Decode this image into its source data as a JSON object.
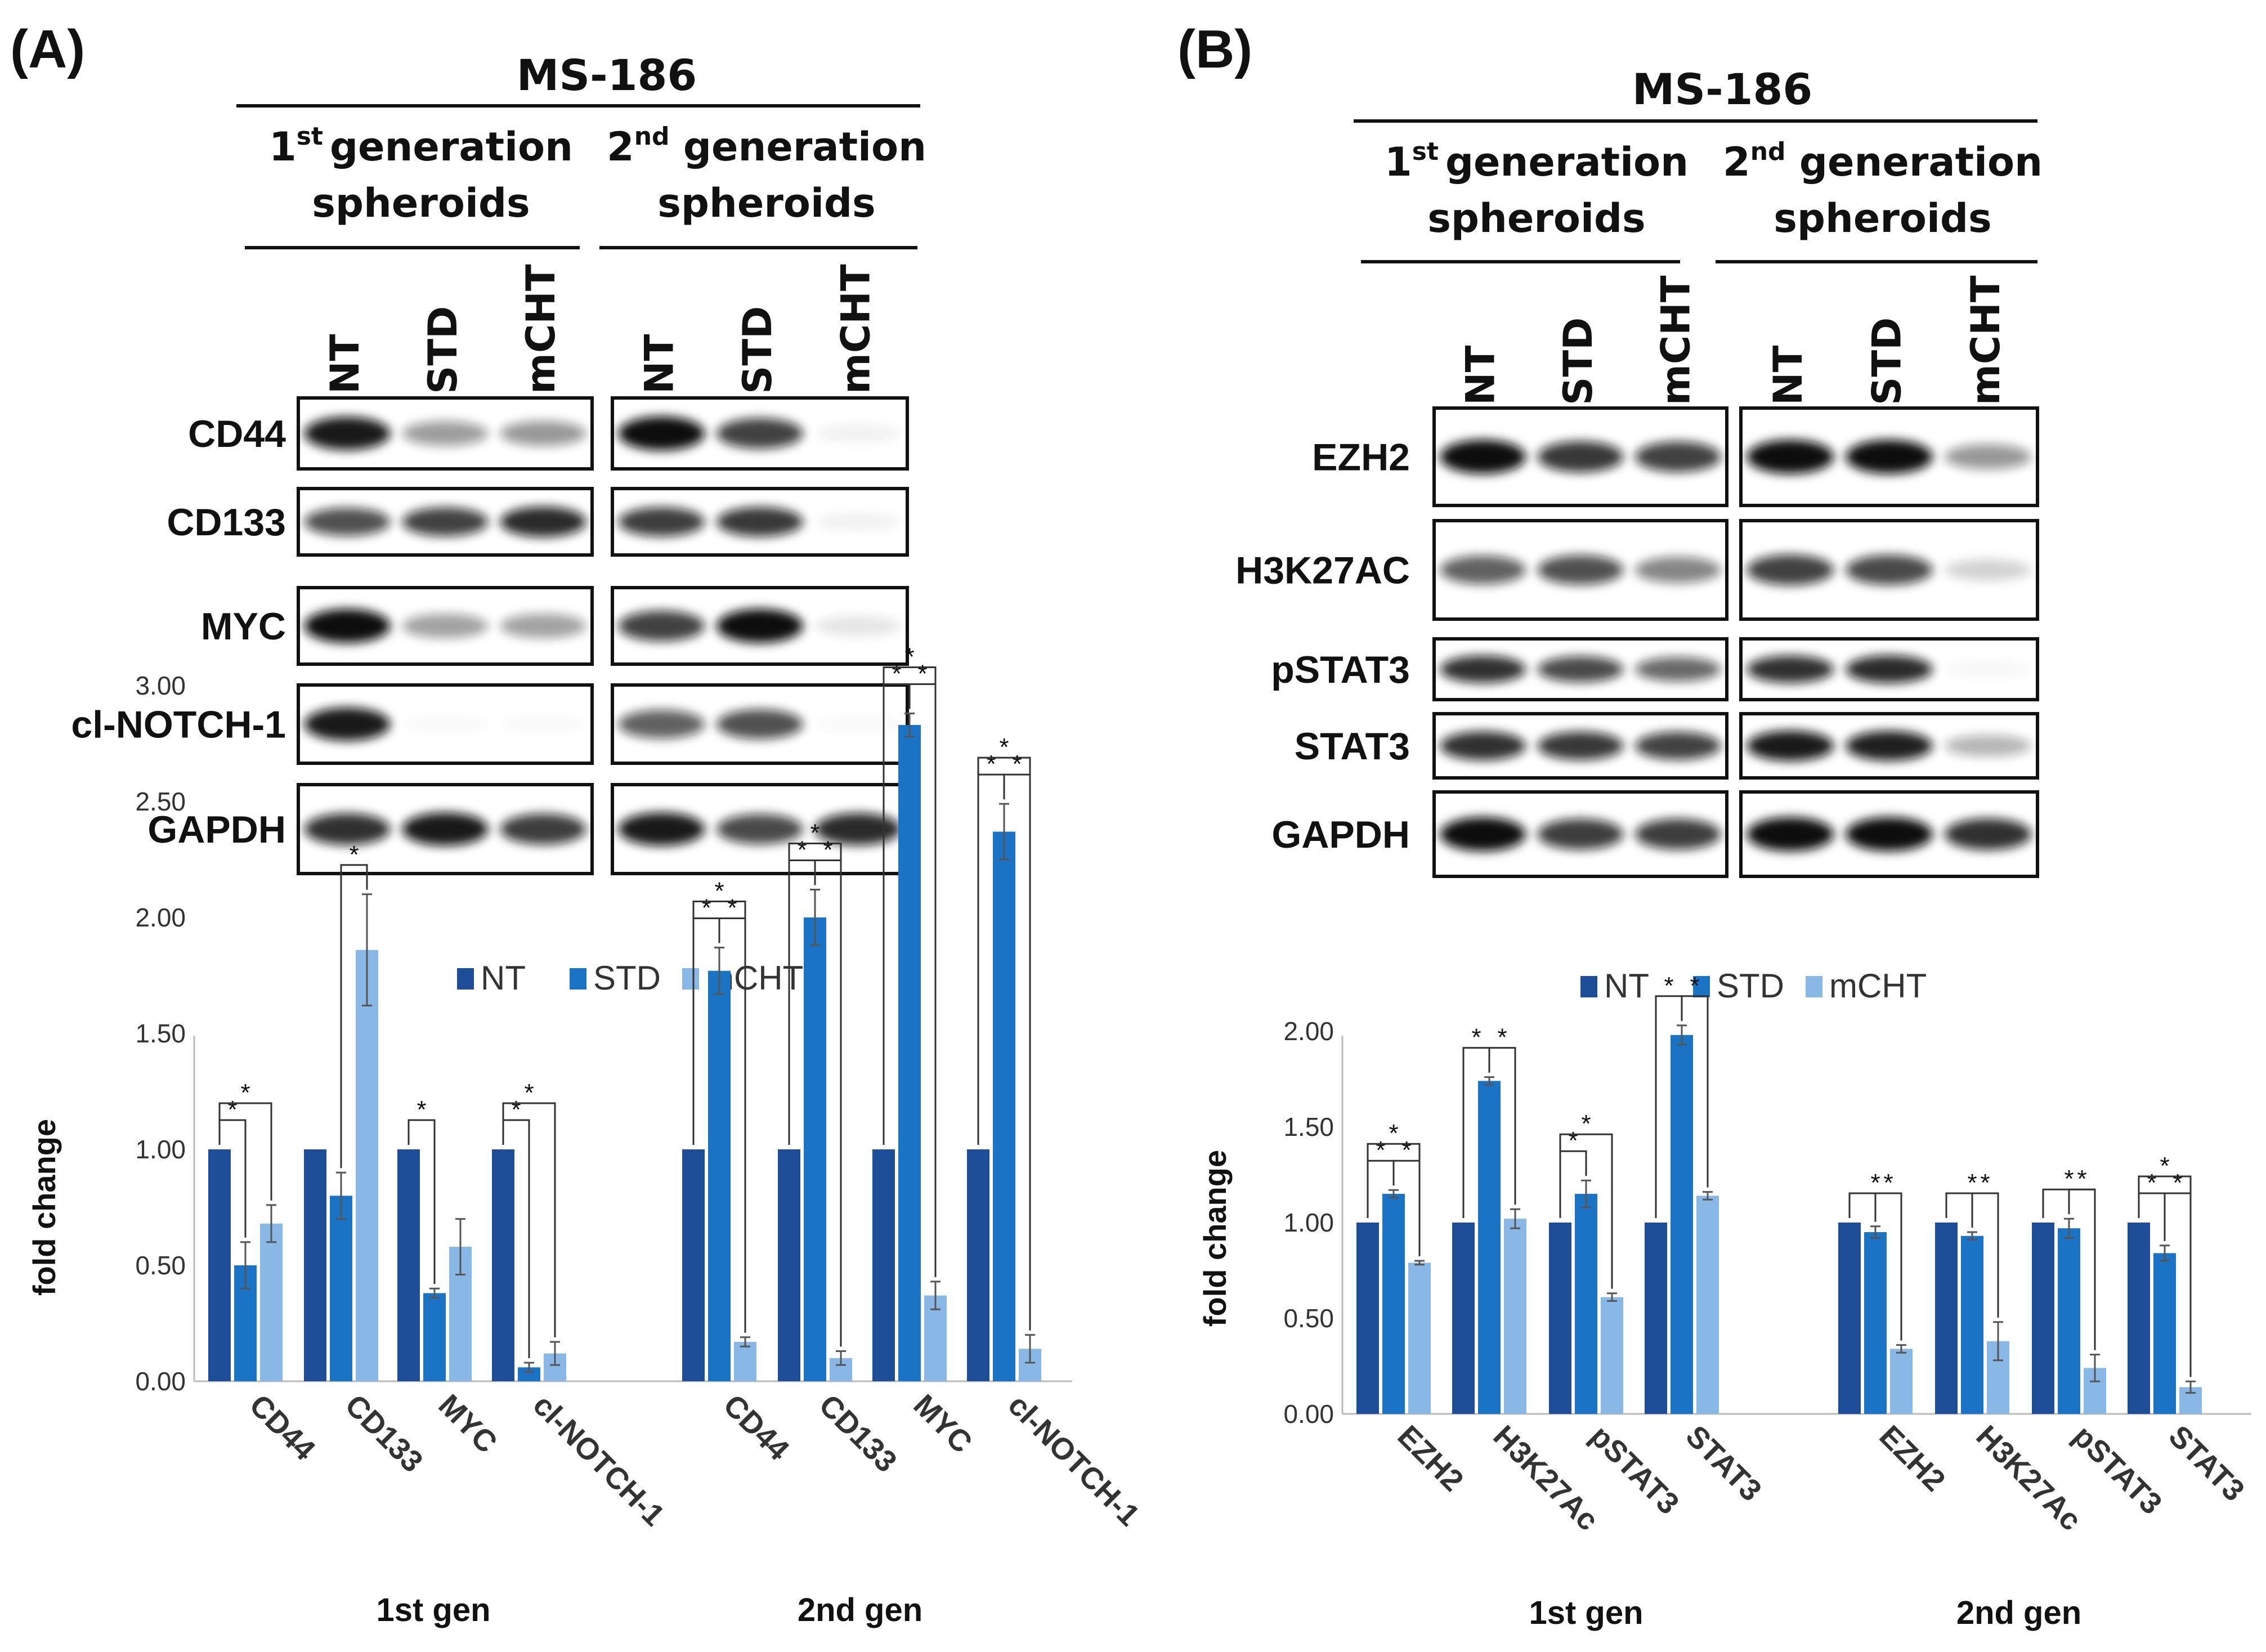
{
  "panels": [
    {
      "label": "(A)",
      "blot": {
        "cell_line": "MS-186",
        "groups": [
          {
            "line1": "1",
            "sup": "st",
            "line1_rest": "generation",
            "line2": "spheroids"
          },
          {
            "line1": "2",
            "sup": "nd",
            "line1_rest": " generation",
            "line2": "spheroids"
          }
        ],
        "lanes": [
          "NT",
          "STD",
          "mCHT"
        ],
        "rows": [
          "CD44",
          "CD133",
          "MYC",
          "cl-NOTCH-1",
          "GAPDH"
        ]
      }
    },
    {
      "label": "(B)",
      "blot": {
        "cell_line": "MS-186",
        "groups": [
          {
            "line1": "1",
            "sup": "st",
            "line1_rest": "generation",
            "line2": "spheroids"
          },
          {
            "line1": "2",
            "sup": "nd",
            "line1_rest": " generation",
            "line2": "spheroids"
          }
        ],
        "lanes": [
          "NT",
          "STD",
          "mCHT"
        ],
        "rows": [
          "EZH2",
          "H3K27AC",
          "pSTAT3",
          "STAT3",
          "GAPDH"
        ]
      }
    }
  ],
  "colors": {
    "NT": "#1f4e99",
    "STD": "#1a73c4",
    "mCHT": "#8ab8e6"
  },
  "chart_data": [
    {
      "type": "bar",
      "ylabel": "fold change",
      "ylim": [
        0,
        3.0
      ],
      "yticks": [
        "0.00",
        "0.50",
        "1.00",
        "1.50",
        "2.00",
        "2.50",
        "3.00"
      ],
      "legend": [
        "NT",
        "STD",
        "mCHT"
      ],
      "legend_position": "top",
      "groups": [
        "1st gen",
        "2nd gen"
      ],
      "categories": [
        "CD44",
        "CD133",
        "MYC",
        "cl-NOTCH-1",
        "CD44",
        "CD133",
        "MYC",
        "cl-NOTCH-1"
      ],
      "series": [
        {
          "name": "NT",
          "values": [
            1.0,
            1.0,
            1.0,
            1.0,
            1.0,
            1.0,
            1.0,
            1.0
          ],
          "errors": [
            0,
            0,
            0,
            0,
            0,
            0,
            0,
            0
          ]
        },
        {
          "name": "STD",
          "values": [
            0.5,
            0.8,
            0.38,
            0.06,
            1.77,
            2.0,
            2.83,
            2.37
          ],
          "errors": [
            0.1,
            0.1,
            0.02,
            0.02,
            0.1,
            0.12,
            0.05,
            0.12
          ]
        },
        {
          "name": "mCHT",
          "values": [
            0.68,
            1.86,
            0.58,
            0.12,
            0.17,
            0.1,
            0.37,
            0.14
          ],
          "errors": [
            0.08,
            0.24,
            0.12,
            0.05,
            0.02,
            0.03,
            0.06,
            0.06
          ]
        }
      ]
    },
    {
      "type": "bar",
      "ylabel": "fold change",
      "ylim": [
        0,
        2.2
      ],
      "yticks": [
        "0.00",
        "0.50",
        "1.00",
        "1.50",
        "2.00"
      ],
      "legend": [
        "NT",
        "STD",
        "mCHT"
      ],
      "legend_position": "top",
      "groups": [
        "1st gen",
        "2nd gen"
      ],
      "categories": [
        "EZH2",
        "H3K27Ac",
        "pSTAT3",
        "STAT3",
        "EZH2",
        "H3K27Ac",
        "pSTAT3",
        "STAT3"
      ],
      "series": [
        {
          "name": "NT",
          "values": [
            1.0,
            1.0,
            1.0,
            1.0,
            1.0,
            1.0,
            1.0,
            1.0
          ],
          "errors": [
            0,
            0,
            0,
            0,
            0,
            0,
            0,
            0
          ]
        },
        {
          "name": "STD",
          "values": [
            1.15,
            1.74,
            1.15,
            1.98,
            0.95,
            0.93,
            0.97,
            0.84
          ],
          "errors": [
            0.02,
            0.02,
            0.07,
            0.05,
            0.03,
            0.02,
            0.05,
            0.04
          ]
        },
        {
          "name": "mCHT",
          "values": [
            0.79,
            1.02,
            0.61,
            1.14,
            0.34,
            0.38,
            0.24,
            0.14
          ],
          "errors": [
            0.01,
            0.05,
            0.02,
            0.02,
            0.02,
            0.1,
            0.07,
            0.03
          ]
        }
      ]
    }
  ]
}
